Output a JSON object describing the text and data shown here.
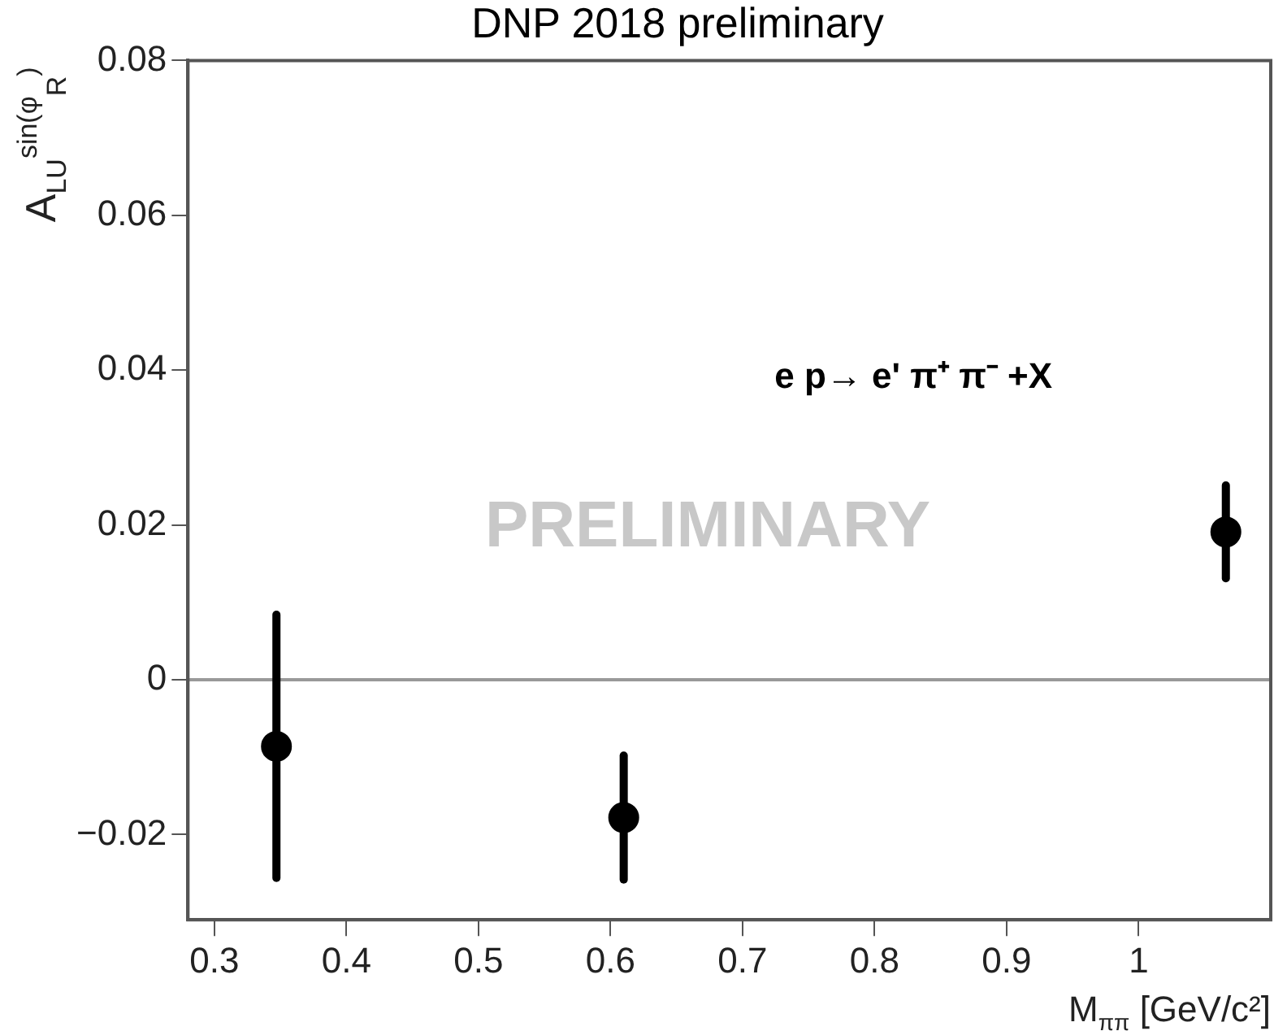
{
  "chart_data": {
    "type": "scatter",
    "title": "DNP 2018 preliminary",
    "xlabel": "M$_{ππ}$ [GeV/c²]",
    "ylabel": "A$_{LU}$$^{sin(φ}$$_{R}$$^{)}$",
    "annotations": [
      "e p→ e' π⁺ π⁻ +X",
      "PRELIMINARY"
    ],
    "x": [
      0.347,
      0.61,
      1.066
    ],
    "series": [
      {
        "color": "#000000",
        "values": [
          -0.0086,
          -0.0178,
          0.0191
        ],
        "errors": [
          0.017,
          0.008,
          0.006
        ]
      }
    ],
    "xlim": [
      0.28,
      1.1
    ],
    "xticks": [
      0.3,
      0.4,
      0.5,
      0.6,
      0.7,
      0.8,
      0.9,
      1
    ],
    "ylim": [
      -0.031,
      0.08
    ],
    "yticks": [
      {
        "value": -0.02,
        "label": "−0.02"
      },
      0,
      0.02,
      0.04,
      0.06,
      0.08
    ],
    "ref_lines": [
      {
        "axis": "y",
        "value": 0,
        "color": "#999999"
      }
    ],
    "marker": "circle",
    "grid": false,
    "legend": false
  }
}
